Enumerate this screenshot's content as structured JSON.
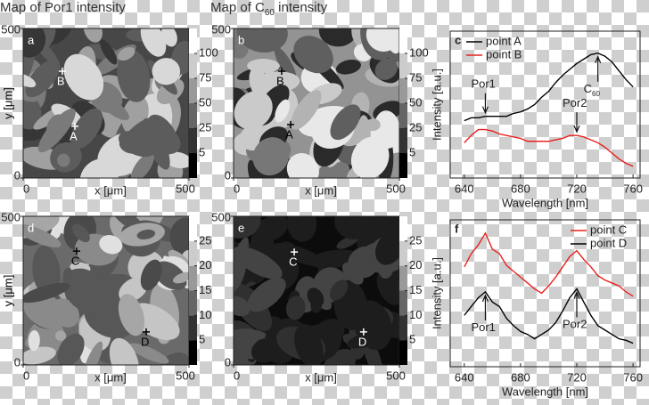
{
  "chart_data": [
    {
      "type": "contour",
      "panel": "a",
      "title": {
        "text": "Map of Por1 intensity"
      },
      "xlabel": "x [μm]",
      "ylabel": "y [μm]",
      "xlim": [
        0,
        500
      ],
      "ylim": [
        0,
        500
      ],
      "xticks": [
        0,
        500
      ],
      "yticks": [
        0,
        500
      ],
      "colorbar_ticks": [
        5,
        25,
        50,
        75,
        100
      ],
      "marker_color": "#ffffff",
      "points": [
        {
          "label": "B",
          "x": 118,
          "y": 357
        },
        {
          "label": "A",
          "x": 156,
          "y": 173
        }
      ]
    },
    {
      "type": "contour",
      "panel": "b",
      "title": {
        "text": "Map of C",
        "sub": "60",
        "tail": " intensity"
      },
      "xlabel": "x [μm]",
      "ylabel": "y [μm]",
      "xlim": [
        0,
        500
      ],
      "ylim": [
        0,
        500
      ],
      "xticks": [
        0,
        500
      ],
      "yticks": [
        0,
        500
      ],
      "colorbar_ticks": [
        5,
        25,
        50,
        75,
        100
      ],
      "marker_color": "#000000",
      "points": [
        {
          "label": "B",
          "x": 145,
          "y": 357
        },
        {
          "label": "A",
          "x": 172,
          "y": 179
        }
      ]
    },
    {
      "type": "line",
      "panel": "c",
      "xlabel": "Wavelength [nm]",
      "ylabel": "Intensity [a.u.]",
      "xlim": [
        630,
        765
      ],
      "ylim": [
        0,
        10
      ],
      "xticks": [
        640,
        680,
        720,
        760
      ],
      "legend": "upper left",
      "x": [
        640,
        645,
        650,
        655,
        660,
        665,
        670,
        675,
        680,
        685,
        690,
        695,
        700,
        705,
        710,
        715,
        720,
        725,
        730,
        735,
        740,
        745,
        750,
        755,
        760
      ],
      "series": [
        {
          "name": "point A",
          "color": "#000000",
          "values": [
            3.9,
            4.1,
            4.1,
            4.2,
            4.2,
            4.2,
            4.2,
            4.4,
            4.5,
            4.7,
            5.0,
            5.5,
            5.9,
            6.5,
            7.0,
            7.4,
            7.8,
            8.1,
            8.4,
            8.5,
            8.3,
            7.9,
            7.3,
            6.7,
            6.2
          ]
        },
        {
          "name": "point B",
          "color": "#e8201e",
          "values": [
            2.4,
            2.9,
            3.3,
            3.3,
            3.2,
            3.0,
            2.9,
            2.8,
            2.7,
            2.5,
            2.5,
            2.5,
            2.5,
            2.6,
            2.7,
            2.9,
            2.9,
            2.8,
            2.6,
            2.4,
            2.1,
            1.7,
            1.3,
            1.0,
            0.8
          ]
        }
      ],
      "annotations": [
        {
          "text": "Por1",
          "x": 655,
          "series": 0,
          "from": "above"
        },
        {
          "text": "Por2",
          "x": 720,
          "series": 1,
          "from": "above"
        },
        {
          "text": "C",
          "sub": "60",
          "x": 735,
          "series": 0,
          "from": "below"
        }
      ]
    },
    {
      "type": "contour",
      "panel": "d",
      "xlabel": "x [μm]",
      "ylabel": "y [μm]",
      "xlim": [
        0,
        500
      ],
      "ylim": [
        0,
        500
      ],
      "xticks": [
        0,
        500
      ],
      "yticks": [
        0,
        500
      ],
      "colorbar_ticks": [
        5,
        10,
        15,
        20,
        25
      ],
      "marker_color": "#000000",
      "points": [
        {
          "label": "C",
          "x": 161,
          "y": 383
        },
        {
          "label": "D",
          "x": 371,
          "y": 111
        }
      ]
    },
    {
      "type": "contour",
      "panel": "e",
      "xlabel": "x [μm]",
      "ylabel": "y [μm]",
      "xlim": [
        0,
        500
      ],
      "ylim": [
        0,
        500
      ],
      "xticks": [
        0,
        500
      ],
      "yticks": [
        0,
        500
      ],
      "colorbar_ticks": [
        5,
        10,
        15,
        20,
        25
      ],
      "marker_color": "#ffffff",
      "points": [
        {
          "label": "C",
          "x": 183,
          "y": 380
        },
        {
          "label": "D",
          "x": 392,
          "y": 111
        }
      ]
    },
    {
      "type": "line",
      "panel": "f",
      "xlabel": "Wavelength [nm]",
      "ylabel": "Intensity [a.u.]",
      "xlim": [
        630,
        765
      ],
      "ylim": [
        0,
        10
      ],
      "xticks": [
        640,
        680,
        720,
        760
      ],
      "legend": "upper right",
      "x": [
        640,
        645,
        650,
        655,
        660,
        665,
        670,
        675,
        680,
        685,
        690,
        695,
        700,
        705,
        710,
        715,
        720,
        725,
        730,
        735,
        740,
        745,
        750,
        755,
        760
      ],
      "series": [
        {
          "name": "point C",
          "color": "#e8201e",
          "values": [
            6.8,
            7.7,
            8.3,
            9.1,
            8.0,
            7.7,
            6.9,
            6.5,
            6.1,
            5.7,
            5.3,
            5.0,
            5.5,
            6.1,
            6.8,
            7.5,
            7.9,
            7.3,
            6.8,
            6.2,
            5.9,
            5.7,
            5.5,
            5.1,
            4.8
          ]
        },
        {
          "name": "point D",
          "color": "#000000",
          "values": [
            3.5,
            4.1,
            4.7,
            5.1,
            4.4,
            4.1,
            3.3,
            2.8,
            2.4,
            2.2,
            1.9,
            2.2,
            2.5,
            3.0,
            3.8,
            4.7,
            5.3,
            4.4,
            3.5,
            2.8,
            2.5,
            2.2,
            1.9,
            1.8,
            1.6
          ]
        }
      ],
      "annotations": [
        {
          "text": "Por1",
          "x": 655,
          "series": 1,
          "from": "below"
        },
        {
          "text": "Por2",
          "x": 720,
          "series": 1,
          "from": "below"
        }
      ]
    }
  ]
}
